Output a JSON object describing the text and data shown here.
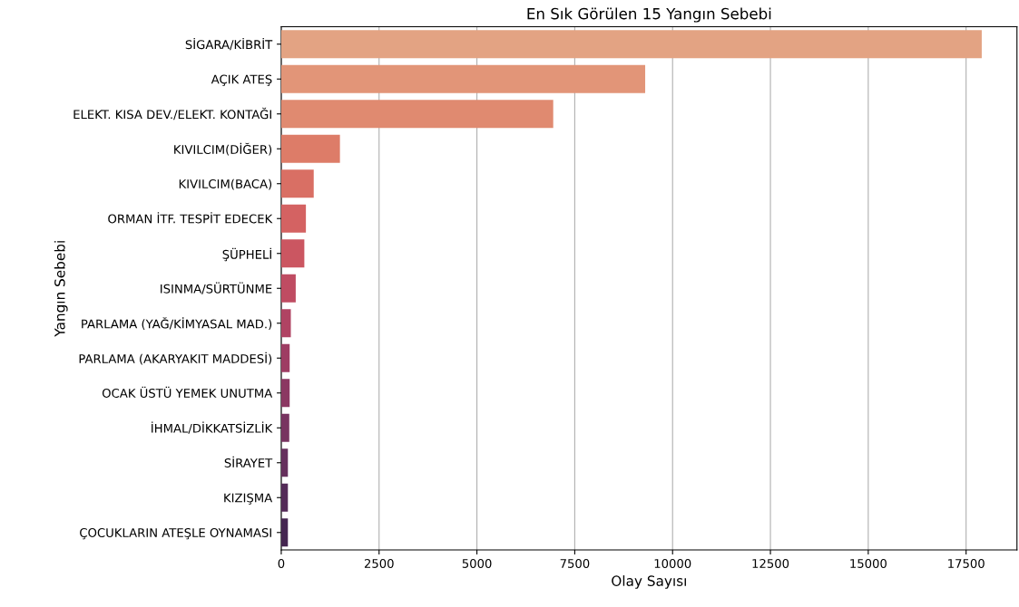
{
  "chart_data": {
    "type": "bar",
    "orientation": "horizontal",
    "title": "En Sık Görülen 15 Yangın Sebebi",
    "xlabel": "Olay Sayısı",
    "ylabel": "Yangın Sebebi",
    "categories": [
      "SİGARA/KİBRİT",
      "AÇIK ATEŞ",
      "ELEKT. KISA DEV./ELEKT. KONTAĞI",
      "KIVILCIM(DİĞER)",
      "KIVILCIM(BACA)",
      "ORMAN İTF. TESPİT EDECEK",
      "ŞÜPHELİ",
      "ISINMA/SÜRTÜNME",
      "PARLAMA (YAĞ/KİMYASAL MAD.)",
      "PARLAMA (AKARYAKIT MADDESİ)",
      "OCAK ÜSTÜ YEMEK UNUTMA",
      "İHMAL/DİKKATSİZLİK",
      "SİRAYET",
      "KIZIŞMA",
      "ÇOCUKLARIN ATEŞLE OYNAMASI"
    ],
    "values": [
      17900,
      9300,
      6950,
      1500,
      830,
      630,
      590,
      370,
      245,
      215,
      215,
      205,
      170,
      170,
      170
    ],
    "colors": [
      "#e3a383",
      "#e29578",
      "#e08a70",
      "#dd7c68",
      "#d96f64",
      "#d46262",
      "#cb5661",
      "#bf4c62",
      "#b04363",
      "#9e3d63",
      "#8b3862",
      "#783460",
      "#66305d",
      "#542b58",
      "#452651"
    ],
    "xlim": [
      0,
      18800
    ],
    "xticks": [
      0,
      2500,
      5000,
      7500,
      10000,
      12500,
      15000,
      17500
    ],
    "grid": "x"
  }
}
